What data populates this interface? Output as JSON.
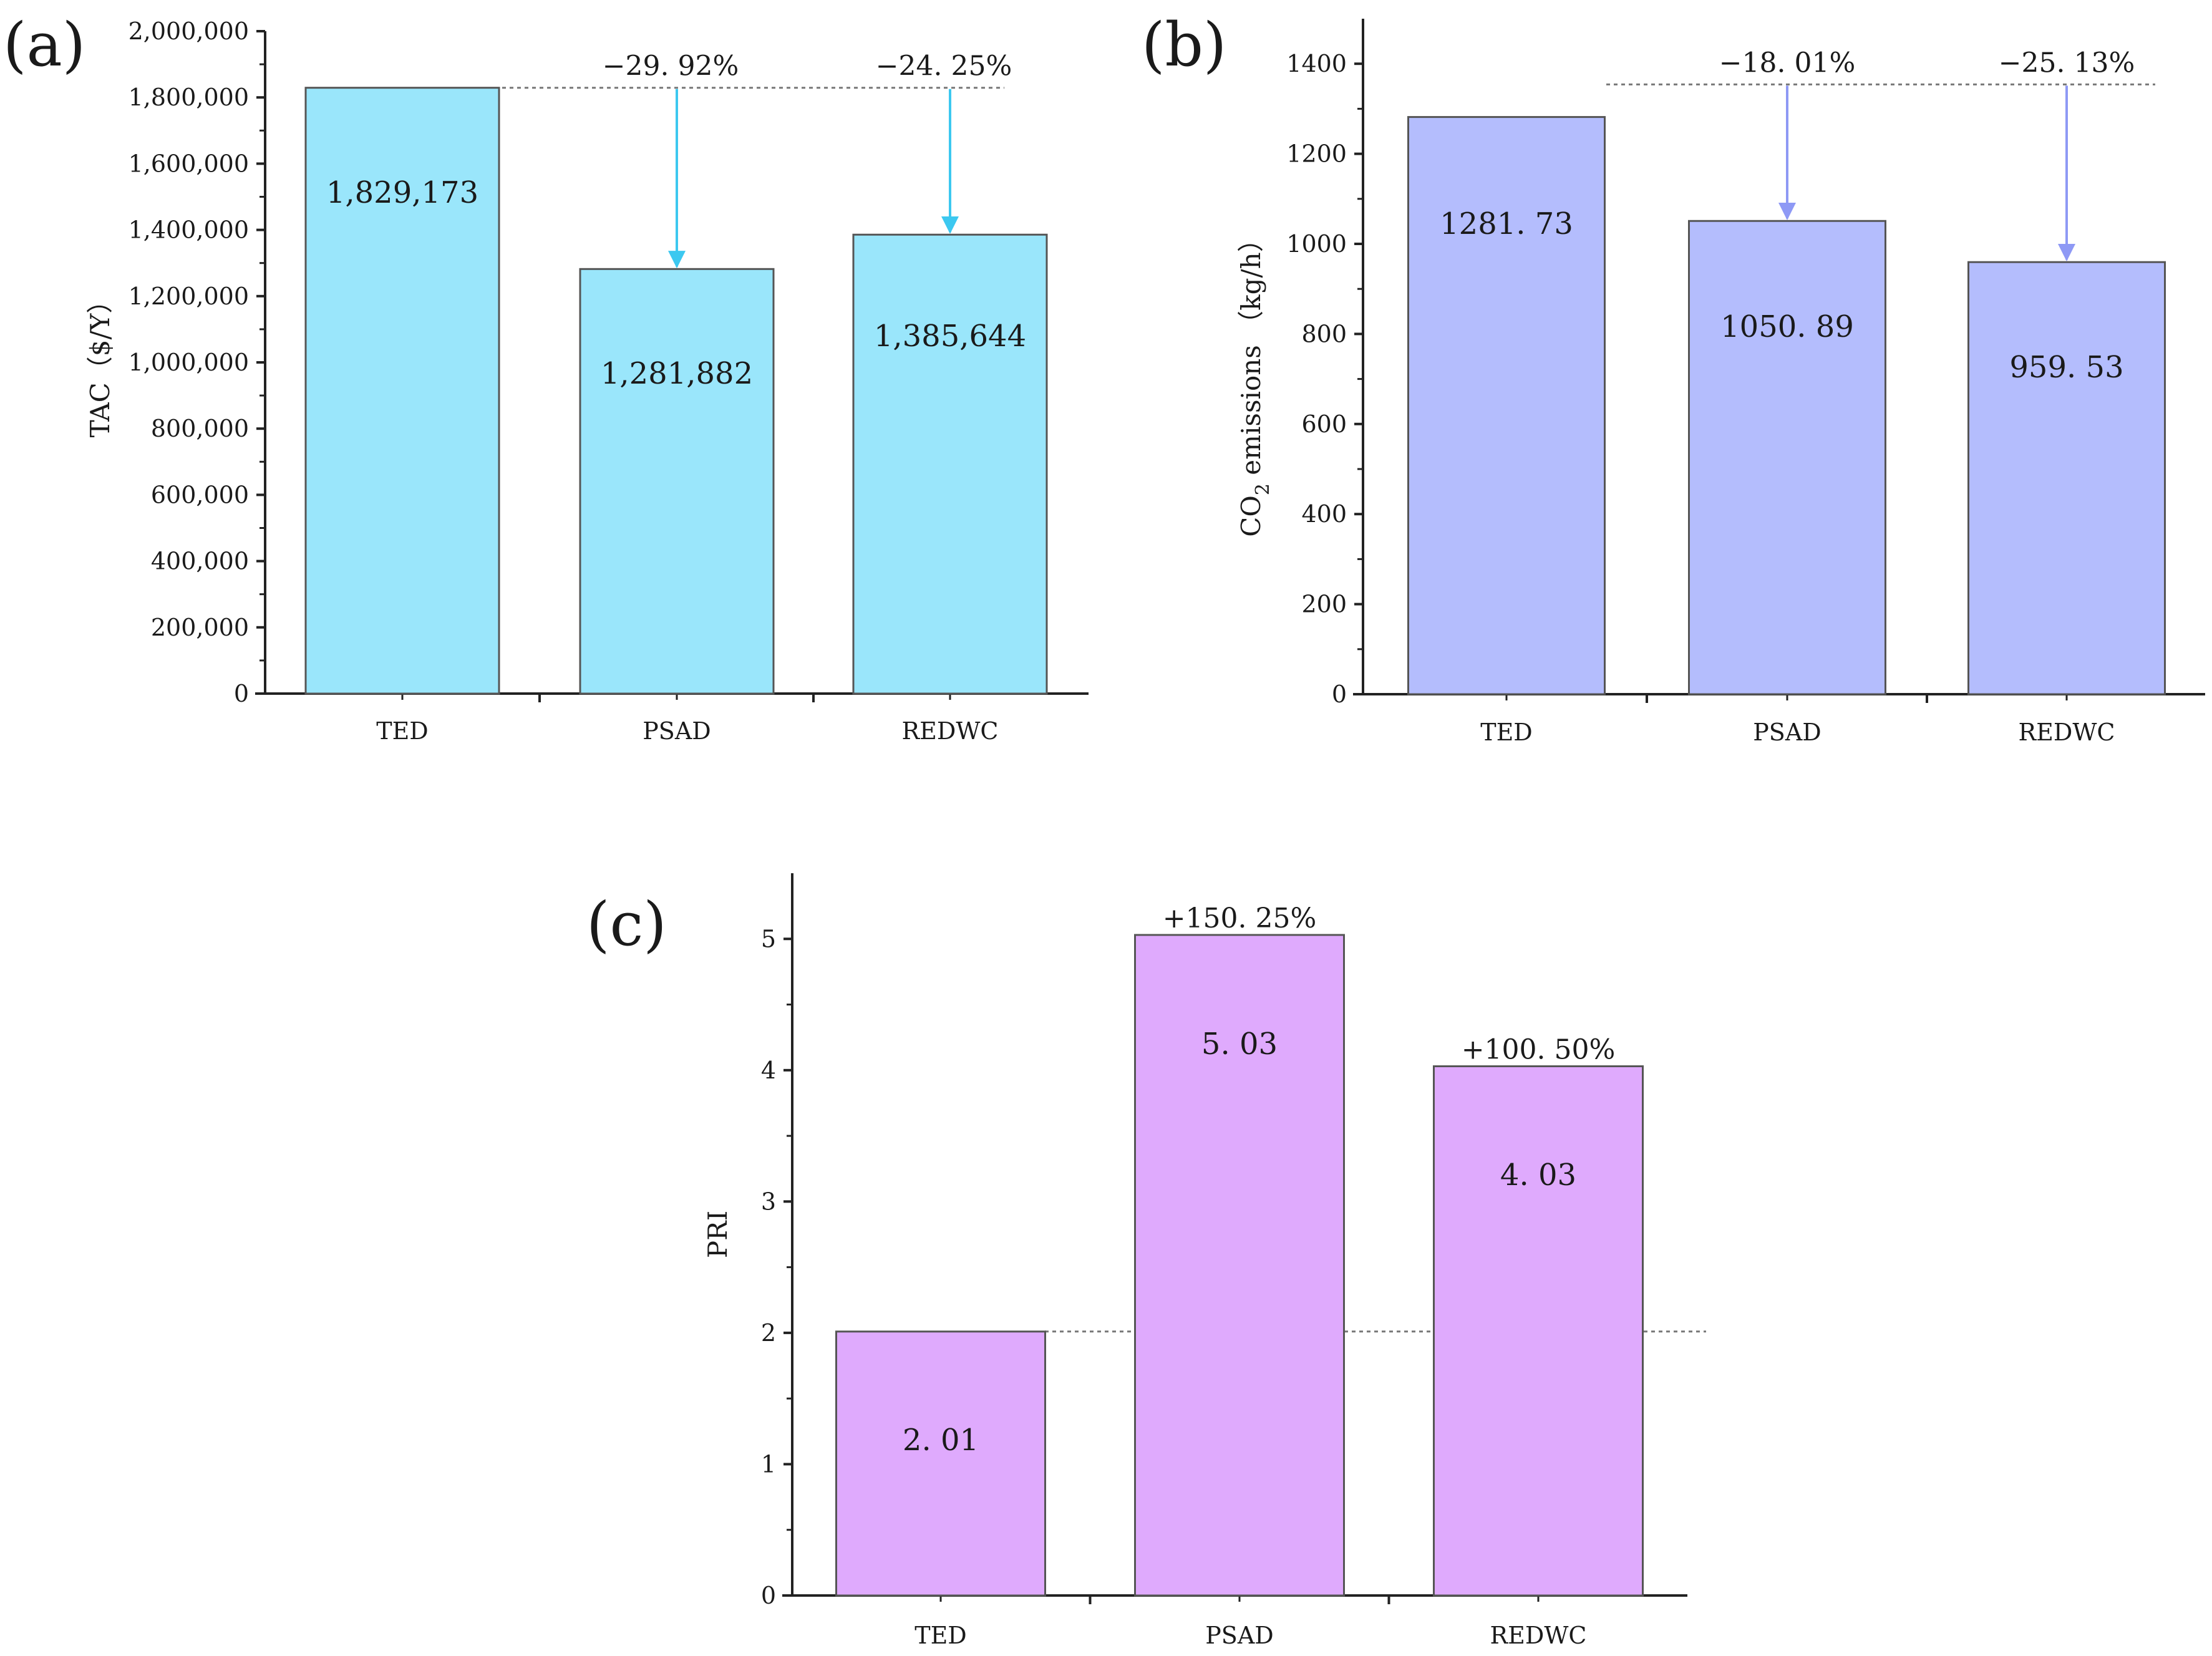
{
  "colors": {
    "panel_a_bar": "#9ae6fb",
    "panel_a_arrow": "#3cc8f0",
    "panel_b_bar": "#b4bdfd",
    "panel_b_arrow": "#8e99f5",
    "panel_c_bar": "#dfaafd"
  },
  "chart_data": [
    {
      "type": "bar",
      "panel_tag": "(a)",
      "ylabel": "TAC（$/Y）",
      "categories": [
        "TED",
        "PSAD",
        "REDWC"
      ],
      "values": [
        1829173,
        1281882,
        1385644
      ],
      "value_labels": [
        "1,829,173",
        "1,281,882",
        "1,385,644"
      ],
      "change_labels": [
        "",
        "−29. 92%",
        "−24. 25%"
      ],
      "ylim": [
        0,
        2000000
      ],
      "yticks": [
        0,
        200000,
        400000,
        600000,
        800000,
        1000000,
        1200000,
        1400000,
        1600000,
        1800000,
        2000000
      ],
      "ytick_labels": [
        "0",
        "200,000",
        "400,000",
        "600,000",
        "800,000",
        "1,000,000",
        "1,200,000",
        "1,400,000",
        "1,600,000",
        "1,800,000",
        "2,000,000"
      ],
      "reference_value": 1829173
    },
    {
      "type": "bar",
      "panel_tag": "(b)",
      "ylabel_main": "CO",
      "ylabel_sub": "2",
      "ylabel_rest": " emissions （kg/h）",
      "categories": [
        "TED",
        "PSAD",
        "REDWC"
      ],
      "values": [
        1281.73,
        1050.89,
        959.53
      ],
      "value_labels": [
        "1281. 73",
        "1050. 89",
        "959. 53"
      ],
      "change_labels": [
        "",
        "−18. 01%",
        "−25. 13%"
      ],
      "ylim": [
        0,
        1500
      ],
      "yticks": [
        0,
        200,
        400,
        600,
        800,
        1000,
        1200,
        1400
      ],
      "ytick_labels": [
        "0",
        "200",
        "400",
        "600",
        "800",
        "1000",
        "1200",
        "1400"
      ],
      "reference_value": 1354
    },
    {
      "type": "bar",
      "panel_tag": "(c)",
      "ylabel": "PRI",
      "categories": [
        "TED",
        "PSAD",
        "REDWC"
      ],
      "values": [
        2.01,
        5.03,
        4.03
      ],
      "value_labels": [
        "2. 01",
        "5. 03",
        "4. 03"
      ],
      "change_labels": [
        "",
        "+150. 25%",
        "+100. 50%"
      ],
      "ylim": [
        0,
        5.5
      ],
      "yticks": [
        0,
        1,
        2,
        3,
        4,
        5
      ],
      "ytick_labels": [
        "0",
        "1",
        "2",
        "3",
        "4",
        "5"
      ],
      "reference_value": 2.01
    }
  ]
}
